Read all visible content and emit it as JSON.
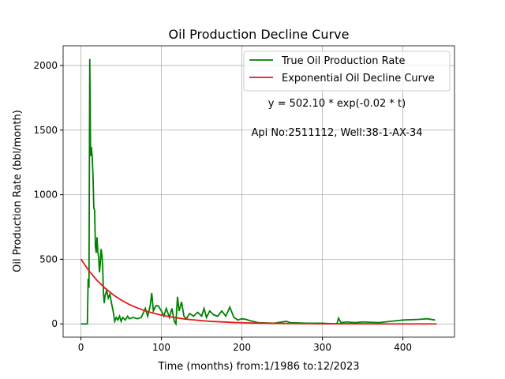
{
  "chart_data": {
    "type": "line",
    "title": "Oil Production Decline Curve",
    "xlabel": "Time (months) from:1/1986 to:12/2023",
    "ylabel": "Oil Production Rate (bbl/month)",
    "annotations": [
      "y = 502.10 * exp(-0.02 * t)",
      "Api No:2511112, Well:38-1-AX-34"
    ],
    "xlim": [
      -22.1,
      464.1
    ],
    "ylim": [
      -102.5,
      2152.5
    ],
    "xticks": [
      0,
      100,
      200,
      300,
      400
    ],
    "yticks": [
      0,
      500,
      1000,
      1500,
      2000
    ],
    "grid": true,
    "legend": "upper right",
    "series": [
      {
        "name": "True Oil Production Rate",
        "color": "#008000",
        "x": [
          0,
          8,
          9,
          10,
          11,
          12,
          13,
          14,
          15,
          16,
          17,
          18,
          19,
          20,
          21,
          22,
          23,
          24,
          25,
          26,
          27,
          28,
          29,
          30,
          32,
          34,
          36,
          38,
          40,
          42,
          44,
          46,
          48,
          50,
          52,
          55,
          58,
          60,
          65,
          70,
          75,
          80,
          83,
          86,
          88,
          90,
          93,
          96,
          100,
          103,
          106,
          110,
          113,
          116,
          118,
          120,
          122,
          125,
          128,
          131,
          135,
          140,
          145,
          150,
          153,
          156,
          160,
          165,
          170,
          175,
          180,
          185,
          190,
          195,
          200,
          205,
          210,
          220,
          240,
          255,
          260,
          280,
          300,
          318,
          320,
          323,
          330,
          340,
          350,
          370,
          400,
          420,
          430,
          440
        ],
        "values": [
          0,
          0,
          350,
          280,
          2050,
          1300,
          1370,
          1290,
          1150,
          900,
          880,
          600,
          550,
          670,
          560,
          520,
          400,
          460,
          580,
          540,
          450,
          240,
          160,
          220,
          260,
          200,
          230,
          160,
          100,
          20,
          50,
          30,
          60,
          20,
          50,
          30,
          60,
          40,
          50,
          40,
          50,
          120,
          60,
          140,
          240,
          100,
          140,
          140,
          100,
          60,
          120,
          50,
          120,
          20,
          0,
          210,
          100,
          170,
          60,
          40,
          80,
          60,
          90,
          60,
          120,
          50,
          100,
          70,
          60,
          100,
          60,
          130,
          50,
          30,
          40,
          35,
          25,
          10,
          5,
          20,
          10,
          5,
          5,
          0,
          45,
          10,
          15,
          10,
          15,
          10,
          30,
          35,
          40,
          30
        ]
      },
      {
        "name": "Exponential Oil Decline Curve",
        "color": "#e41a1c",
        "x": [
          0,
          10,
          20,
          30,
          40,
          50,
          60,
          70,
          80,
          90,
          100,
          110,
          120,
          130,
          140,
          150,
          160,
          170,
          180,
          190,
          200,
          220,
          240,
          260,
          280,
          300,
          340,
          380,
          442
        ],
        "values": [
          502,
          411,
          337,
          276,
          226,
          185,
          151,
          124,
          101,
          83,
          68,
          56,
          46,
          37,
          31,
          25,
          20,
          17,
          14,
          11,
          9,
          6,
          4,
          3,
          2,
          1,
          1,
          0,
          0
        ]
      }
    ]
  }
}
